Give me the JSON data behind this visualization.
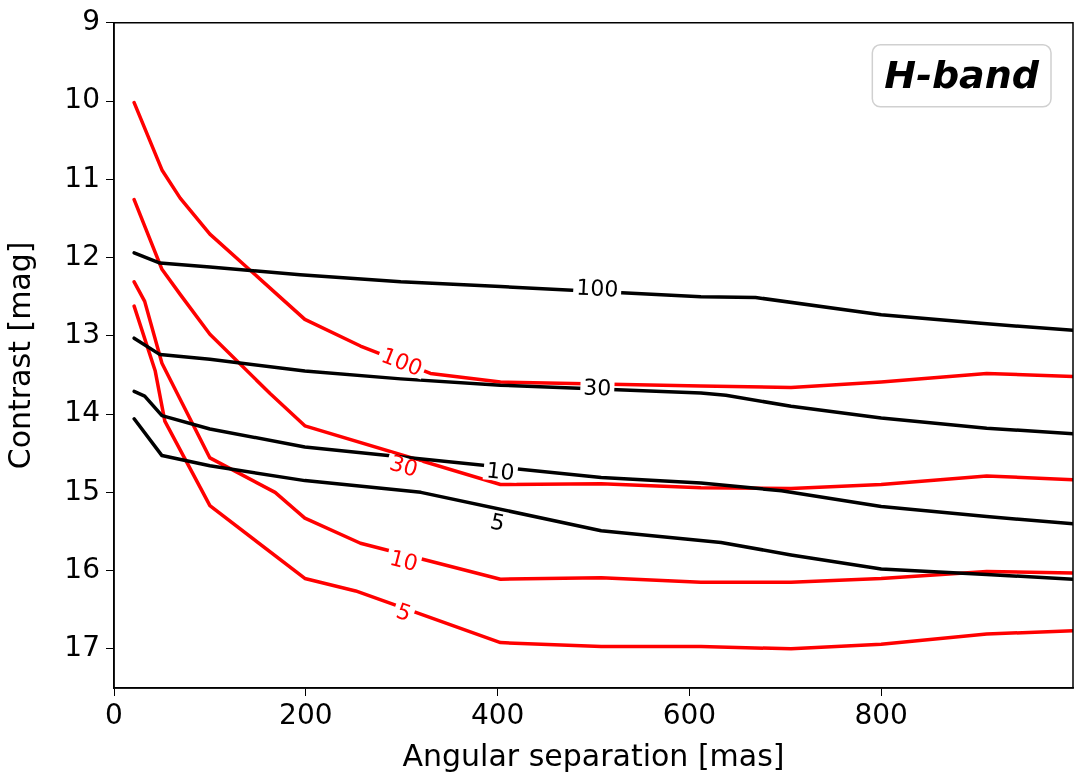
{
  "chart_data": {
    "type": "line",
    "xlabel": "Angular separation [mas]",
    "ylabel": "Contrast [mag]",
    "xlim": [
      0,
      1000
    ],
    "xticks": [
      0,
      200,
      400,
      600,
      800
    ],
    "ylim": [
      17.5,
      9
    ],
    "yticks": [
      9,
      10,
      11,
      12,
      13,
      14,
      15,
      16,
      17
    ],
    "grid": false,
    "legend": false,
    "marker": "none",
    "line_style": "solid",
    "series": [
      {
        "color": "#000000",
        "x": [
          21,
          48,
          100,
          194,
          299,
          403,
          612,
          669,
          800,
          904,
          1000
        ],
        "values": [
          11.94,
          12.07,
          12.12,
          12.22,
          12.31,
          12.37,
          12.5,
          12.51,
          12.73,
          12.84,
          12.93
        ]
      },
      {
        "color": "#000000",
        "x": [
          21,
          48,
          100,
          199,
          299,
          403,
          612,
          638,
          706,
          800,
          910,
          1000
        ],
        "values": [
          13.03,
          13.24,
          13.3,
          13.45,
          13.55,
          13.63,
          13.73,
          13.76,
          13.9,
          14.05,
          14.18,
          14.25
        ]
      },
      {
        "color": "#000000",
        "x": [
          21,
          32,
          50,
          100,
          199,
          508,
          612,
          696,
          800,
          910,
          1000
        ],
        "values": [
          13.71,
          13.77,
          14.02,
          14.19,
          14.42,
          14.81,
          14.88,
          14.98,
          15.18,
          15.31,
          15.4
        ]
      },
      {
        "color": "#000000",
        "x": [
          21,
          50,
          100,
          199,
          320,
          508,
          633,
          706,
          800,
          910,
          1000
        ],
        "values": [
          14.06,
          14.53,
          14.66,
          14.85,
          15.0,
          15.49,
          15.64,
          15.8,
          15.98,
          16.05,
          16.11
        ]
      },
      {
        "color": "#ff0000",
        "x": [
          21,
          50,
          69,
          100,
          170,
          199,
          257,
          330,
          403,
          612,
          706,
          800,
          910,
          1000
        ],
        "values": [
          10.02,
          10.88,
          11.24,
          11.7,
          12.47,
          12.79,
          13.13,
          13.48,
          13.59,
          13.64,
          13.66,
          13.59,
          13.48,
          13.52
        ]
      },
      {
        "color": "#ff0000",
        "x": [
          21,
          50,
          69,
          100,
          163,
          199,
          403,
          508,
          612,
          706,
          800,
          910,
          1000
        ],
        "values": [
          11.26,
          12.15,
          12.47,
          12.98,
          13.74,
          14.15,
          14.9,
          14.89,
          14.94,
          14.95,
          14.9,
          14.79,
          14.84
        ]
      },
      {
        "color": "#ff0000",
        "x": [
          21,
          32,
          50,
          100,
          168,
          199,
          257,
          403,
          508,
          612,
          706,
          800,
          910,
          1000
        ],
        "values": [
          12.31,
          12.56,
          13.35,
          14.56,
          15.0,
          15.33,
          15.65,
          16.11,
          16.09,
          16.15,
          16.15,
          16.1,
          16.01,
          16.03
        ]
      },
      {
        "color": "#ff0000",
        "x": [
          21,
          43,
          53,
          100,
          199,
          252,
          403,
          508,
          612,
          706,
          800,
          910,
          1000
        ],
        "values": [
          12.62,
          13.45,
          14.09,
          15.17,
          16.1,
          16.26,
          16.92,
          16.97,
          16.97,
          17.0,
          16.94,
          16.81,
          16.77
        ]
      }
    ],
    "annotations": [
      {
        "text": "100",
        "x": 504,
        "y": 12.4
      },
      {
        "text": "30",
        "x": 504,
        "y": 13.67
      },
      {
        "text": "10",
        "x": 403,
        "y": 14.74
      },
      {
        "text": "5",
        "x": 400,
        "y": 15.39
      },
      {
        "text": "100",
        "x": 300,
        "y": 13.34
      },
      {
        "text": "30",
        "x": 302,
        "y": 14.67
      },
      {
        "text": "10",
        "x": 302,
        "y": 15.88
      },
      {
        "text": "5",
        "x": 302,
        "y": 16.54
      },
      "H-band"
    ]
  }
}
